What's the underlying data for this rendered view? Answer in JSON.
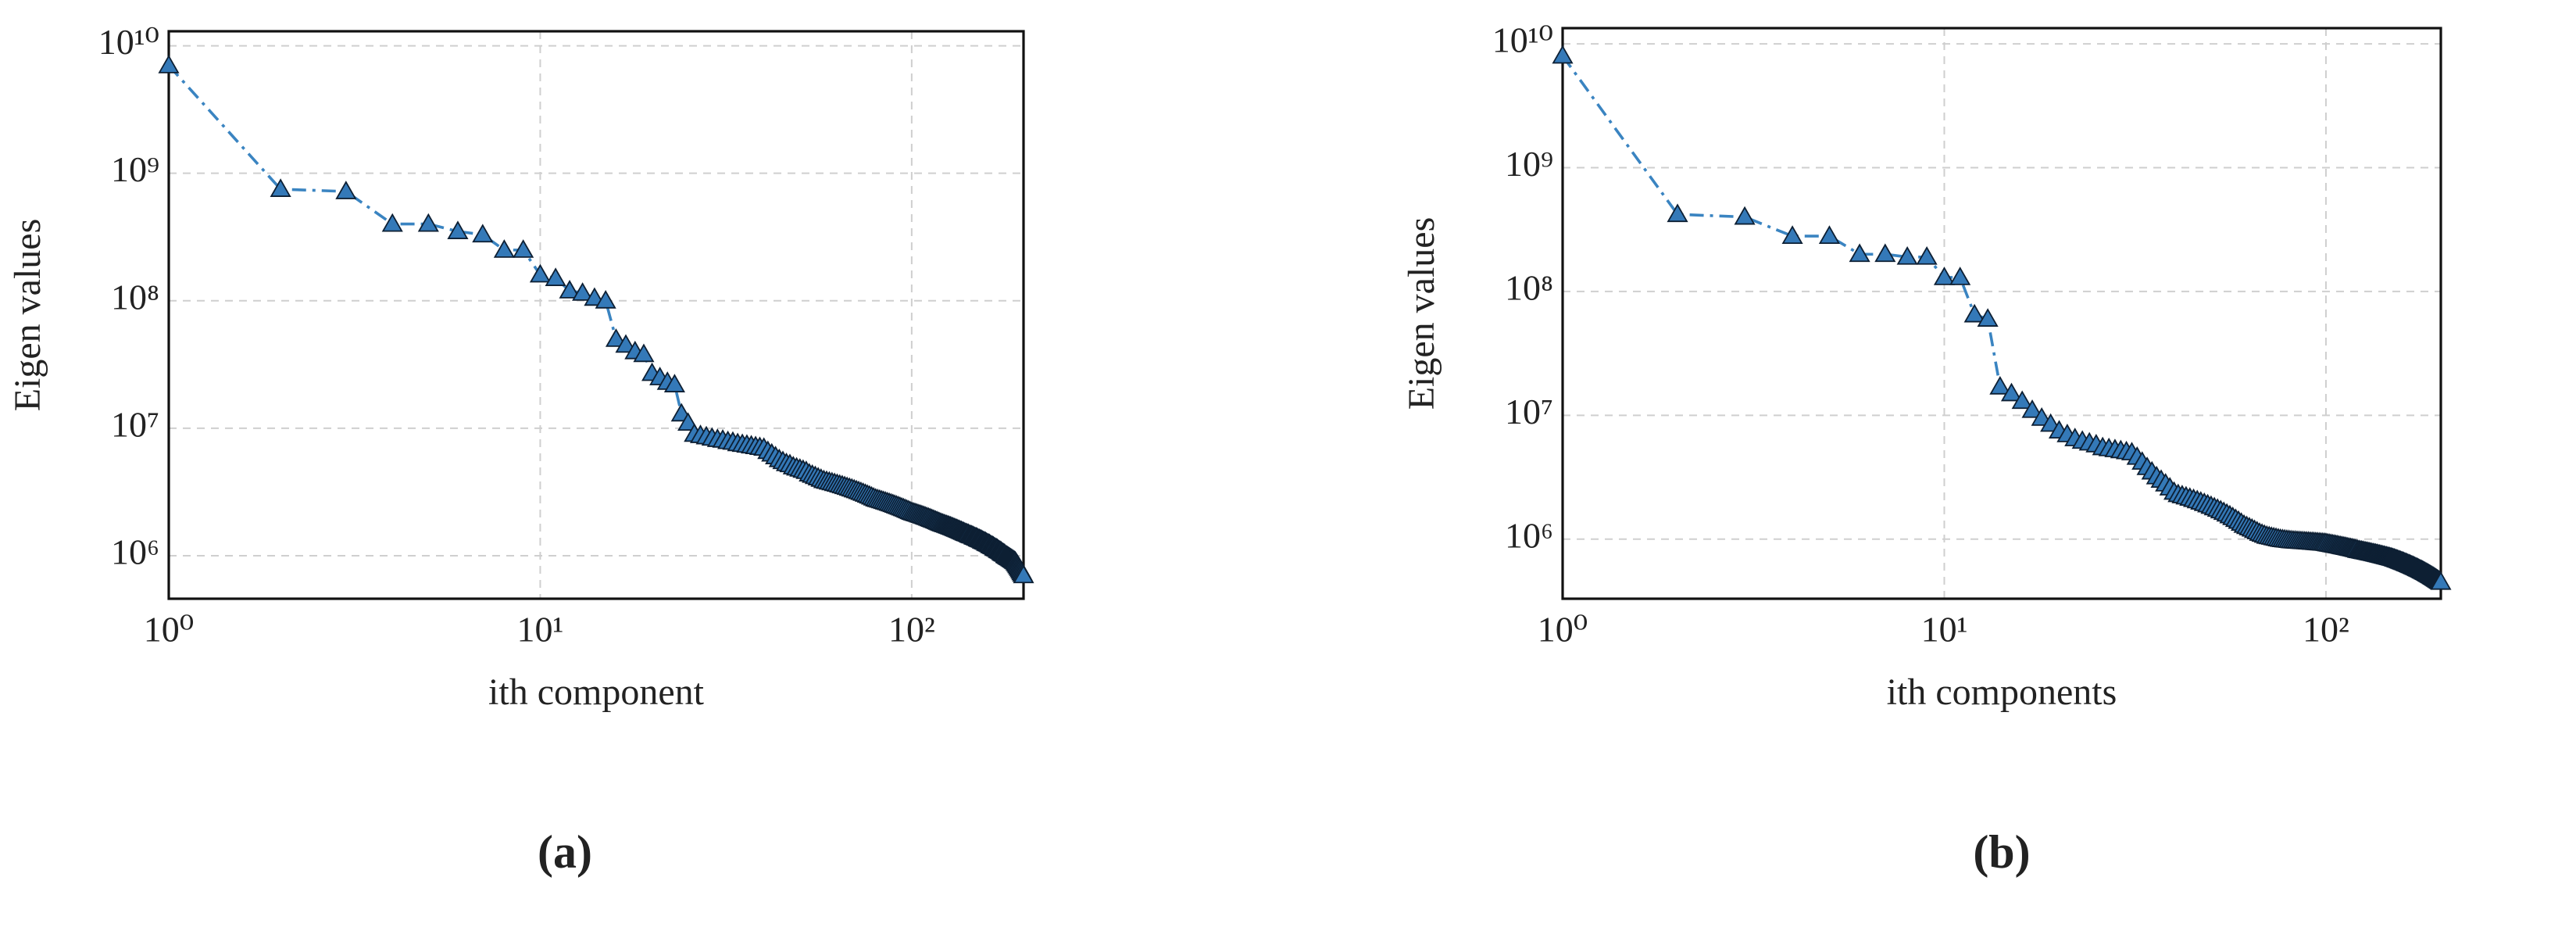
{
  "chart_data": [
    {
      "type": "line",
      "log_x": true,
      "log_y": true,
      "grid": true,
      "marker": "triangle",
      "line_style": "dashdot",
      "color": "#3a84c1",
      "marker_color": "#3479b8",
      "x_label": "ith component",
      "y_label": "Eigen values",
      "caption": "(a)",
      "xlim": [
        1,
        200
      ],
      "ylim": [
        460000,
        13000000000
      ],
      "xticks": [
        {
          "value": 1,
          "label": "10⁰"
        },
        {
          "value": 10,
          "label": "10¹"
        },
        {
          "value": 100,
          "label": "10²"
        }
      ],
      "yticks": [
        {
          "value": 1000000,
          "label": "10⁶"
        },
        {
          "value": 10000000,
          "label": "10⁷"
        },
        {
          "value": 100000000,
          "label": "10⁸"
        },
        {
          "value": 1000000000,
          "label": "10⁹"
        },
        {
          "value": 10000000000,
          "label": "10¹⁰"
        }
      ],
      "x": [
        1,
        2,
        3,
        4,
        5,
        6,
        7,
        8,
        9,
        10,
        11,
        12,
        13,
        14,
        15,
        16,
        17,
        18,
        19,
        20,
        21,
        22,
        23,
        24,
        25,
        26,
        27,
        28,
        29,
        30,
        31,
        32,
        33,
        34,
        35,
        36,
        37,
        38,
        39,
        40,
        41,
        42,
        43,
        44,
        45,
        46,
        47,
        48,
        49,
        50,
        51,
        52,
        53,
        54,
        55,
        56,
        57,
        58,
        59,
        60,
        61,
        62,
        63,
        64,
        65,
        66,
        67,
        68,
        69,
        70,
        71,
        72,
        73,
        74,
        75,
        76,
        77,
        78,
        79,
        80,
        81,
        82,
        83,
        84,
        85,
        86,
        87,
        88,
        89,
        90,
        91,
        92,
        93,
        94,
        95,
        96,
        97,
        98,
        99,
        100,
        101,
        102,
        103,
        104,
        105,
        106,
        107,
        108,
        109,
        110,
        111,
        112,
        113,
        114,
        115,
        116,
        117,
        118,
        119,
        120,
        121,
        122,
        123,
        124,
        125,
        126,
        127,
        128,
        129,
        130,
        131,
        132,
        133,
        134,
        135,
        136,
        137,
        138,
        139,
        140,
        141,
        142,
        143,
        144,
        145,
        146,
        147,
        148,
        149,
        150,
        151,
        152,
        153,
        154,
        155,
        156,
        157,
        158,
        159,
        160,
        161,
        162,
        163,
        164,
        165,
        166,
        167,
        168,
        169,
        170,
        171,
        172,
        173,
        174,
        175,
        176,
        177,
        178,
        179,
        180,
        181,
        182,
        183,
        184,
        185,
        186,
        187,
        188,
        189,
        190,
        191,
        192,
        193,
        194,
        195,
        196,
        197,
        198,
        199,
        200
      ],
      "values": [
        7000000000.0,
        750000000.0,
        720000000.0,
        400000000.0,
        400000000.0,
        350000000.0,
        330000000.0,
        250000000.0,
        250000000.0,
        160000000.0,
        150000000.0,
        120000000.0,
        115000000.0,
        105000000.0,
        100000000.0,
        50000000.0,
        45000000.0,
        40000000.0,
        38000000.0,
        27000000.0,
        25000000.0,
        23000000.0,
        22000000.0,
        13000000.0,
        11000000.0,
        9000000.0,
        8800000.0,
        8600000.0,
        8400000.0,
        8200000.0,
        8100000.0,
        7900000.0,
        7800000.0,
        7600000.0,
        7500000.0,
        7400000.0,
        7300000.0,
        7200000.0,
        7100000.0,
        7000000.0,
        6600000.0,
        6300000.0,
        6000000.0,
        5700000.0,
        5500000.0,
        5300000.0,
        5200000.0,
        5000000.0,
        4900000.0,
        4800000.0,
        4700000.0,
        4600000.0,
        4400000.0,
        4300000.0,
        4200000.0,
        4100000.0,
        4000000.0,
        3900000.0,
        3850000.0,
        3800000.0,
        3750000.0,
        3700000.0,
        3650000.0,
        3600000.0,
        3550000.0,
        3500000.0,
        3450000.0,
        3400000.0,
        3350000.0,
        3300000.0,
        3250000.0,
        3200000.0,
        3150000.0,
        3100000.0,
        3050000.0,
        3000000.0,
        2950000.0,
        2900000.0,
        2850000.0,
        2800000.0,
        2770000.0,
        2740000.0,
        2710000.0,
        2680000.0,
        2650000.0,
        2620000.0,
        2590000.0,
        2560000.0,
        2530000.0,
        2500000.0,
        2470000.0,
        2440000.0,
        2410000.0,
        2380000.0,
        2350000.0,
        2320000.0,
        2290000.0,
        2260000.0,
        2230000.0,
        2200000.0,
        2180000.0,
        2160000.0,
        2140000.0,
        2120000.0,
        2100000.0,
        2080000.0,
        2060000.0,
        2040000.0,
        2020000.0,
        2000000.0,
        1980000.0,
        1960000.0,
        1940000.0,
        1920000.0,
        1900000.0,
        1880000.0,
        1860000.0,
        1840000.0,
        1820000.0,
        1800000.0,
        1785000.0,
        1770000.0,
        1755000.0,
        1740000.0,
        1725000.0,
        1710000.0,
        1695000.0,
        1680000.0,
        1665000.0,
        1650000.0,
        1635000.0,
        1620000.0,
        1605000.0,
        1590000.0,
        1575000.0,
        1560000.0,
        1545000.0,
        1530000.0,
        1515000.0,
        1500000.0,
        1490000.0,
        1480000.0,
        1460000.0,
        1450000.0,
        1440000.0,
        1430000.0,
        1410000.0,
        1400000.0,
        1390000.0,
        1380000.0,
        1360000.0,
        1350000.0,
        1340000.0,
        1330000.0,
        1310000.0,
        1300000.0,
        1290000.0,
        1280000.0,
        1260000.0,
        1250000.0,
        1240000.0,
        1230000.0,
        1210000.0,
        1200000.0,
        1190000.0,
        1180000.0,
        1160000.0,
        1150000.0,
        1140000.0,
        1130000.0,
        1110000.0,
        1100000.0,
        1090000.0,
        1080000.0,
        1060000.0,
        1050000.0,
        1040000.0,
        1030000.0,
        1010000.0,
        1000000.0,
        990000.0,
        980000.0,
        970000.0,
        960000.0,
        950000.0,
        940000.0,
        930000.0,
        920000.0,
        910000.0,
        900000.0,
        880000.0,
        860000.0,
        840000.0,
        820000.0,
        800000.0,
        780000.0,
        760000.0,
        740000.0,
        720000.0,
        700000.0
      ]
    },
    {
      "type": "line",
      "log_x": true,
      "log_y": true,
      "grid": true,
      "marker": "triangle",
      "line_style": "dashdot",
      "color": "#3a84c1",
      "marker_color": "#3479b8",
      "x_label": "ith components",
      "y_label": "Eigen values",
      "caption": "(b)",
      "xlim": [
        1,
        200
      ],
      "ylim": [
        330000,
        13400000000
      ],
      "xticks": [
        {
          "value": 1,
          "label": "10⁰"
        },
        {
          "value": 10,
          "label": "10¹"
        },
        {
          "value": 100,
          "label": "10²"
        }
      ],
      "yticks": [
        {
          "value": 1000000,
          "label": "10⁶"
        },
        {
          "value": 10000000,
          "label": "10⁷"
        },
        {
          "value": 100000000,
          "label": "10⁸"
        },
        {
          "value": 1000000000,
          "label": "10⁹"
        },
        {
          "value": 10000000000,
          "label": "10¹⁰"
        }
      ],
      "x": [
        1,
        2,
        3,
        4,
        5,
        6,
        7,
        8,
        9,
        10,
        11,
        12,
        13,
        14,
        15,
        16,
        17,
        18,
        19,
        20,
        21,
        22,
        23,
        24,
        25,
        26,
        27,
        28,
        29,
        30,
        31,
        32,
        33,
        34,
        35,
        36,
        37,
        38,
        39,
        40,
        41,
        42,
        43,
        44,
        45,
        46,
        47,
        48,
        49,
        50,
        51,
        52,
        53,
        54,
        55,
        56,
        57,
        58,
        59,
        60,
        61,
        62,
        63,
        64,
        65,
        66,
        67,
        68,
        69,
        70,
        71,
        72,
        73,
        74,
        75,
        76,
        77,
        78,
        79,
        80,
        81,
        82,
        83,
        84,
        85,
        86,
        87,
        88,
        89,
        90,
        91,
        92,
        93,
        94,
        95,
        96,
        97,
        98,
        99,
        100,
        101,
        102,
        103,
        104,
        105,
        106,
        107,
        108,
        109,
        110,
        111,
        112,
        113,
        114,
        115,
        116,
        117,
        118,
        119,
        120,
        121,
        122,
        123,
        124,
        125,
        126,
        127,
        128,
        129,
        130,
        131,
        132,
        133,
        134,
        135,
        136,
        137,
        138,
        139,
        140,
        141,
        142,
        143,
        144,
        145,
        146,
        147,
        148,
        149,
        150,
        151,
        152,
        153,
        154,
        155,
        156,
        157,
        158,
        159,
        160,
        161,
        162,
        163,
        164,
        165,
        166,
        167,
        168,
        169,
        170,
        171,
        172,
        173,
        174,
        175,
        176,
        177,
        178,
        179,
        180,
        181,
        182,
        183,
        184,
        185,
        186,
        187,
        188,
        189,
        190,
        191,
        192,
        193,
        194,
        195,
        196,
        197,
        198,
        199,
        200
      ],
      "values": [
        8000000000.0,
        420000000.0,
        400000000.0,
        280000000.0,
        280000000.0,
        200000000.0,
        200000000.0,
        190000000.0,
        190000000.0,
        130000000.0,
        130000000.0,
        65000000.0,
        60000000.0,
        17000000.0,
        15000000.0,
        13000000.0,
        11000000.0,
        9500000.0,
        8500000.0,
        7500000.0,
        7000000.0,
        6500000.0,
        6200000.0,
        6000000.0,
        5800000.0,
        5500000.0,
        5400000.0,
        5300000.0,
        5200000.0,
        5100000.0,
        5000000.0,
        4600000.0,
        4200000.0,
        3800000.0,
        3500000.0,
        3200000.0,
        3000000.0,
        2800000.0,
        2600000.0,
        2400000.0,
        2300000.0,
        2250000.0,
        2200000.0,
        2150000.0,
        2100000.0,
        2050000.0,
        2000000.0,
        1950000.0,
        1900000.0,
        1850000.0,
        1800000.0,
        1750000.0,
        1700000.0,
        1650000.0,
        1600000.0,
        1550000.0,
        1500000.0,
        1450000.0,
        1400000.0,
        1350000.0,
        1300000.0,
        1270000.0,
        1240000.0,
        1210000.0,
        1180000.0,
        1150000.0,
        1120000.0,
        1100000.0,
        1080000.0,
        1060000.0,
        1050000.0,
        1040000.0,
        1030000.0,
        1020000.0,
        1010000.0,
        1000000.0,
        995000.0,
        990000.0,
        985000.0,
        980000.0,
        975000.0,
        972000.0,
        970000.0,
        967000.0,
        965000.0,
        962000.0,
        960000.0,
        957000.0,
        955000.0,
        952000.0,
        950000.0,
        947000.0,
        945000.0,
        942000.0,
        940000.0,
        937000.0,
        935000.0,
        932000.0,
        930000.0,
        927000.0,
        920000.0,
        915000.0,
        910000.0,
        905000.0,
        900000.0,
        895000.0,
        890000.0,
        885000.0,
        880000.0,
        875000.0,
        870000.0,
        865000.0,
        860000.0,
        855000.0,
        850000.0,
        845000.0,
        840000.0,
        835000.0,
        830000.0,
        825000.0,
        816000.0,
        812000.0,
        808000.0,
        804000.0,
        800000.0,
        796000.0,
        792000.0,
        788000.0,
        784000.0,
        780000.0,
        776000.0,
        772000.0,
        768000.0,
        764000.0,
        760000.0,
        756000.0,
        752000.0,
        748000.0,
        744000.0,
        740000.0,
        736000.0,
        732000.0,
        728000.0,
        724000.0,
        720000.0,
        716000.0,
        712000.0,
        708000.0,
        704000.0,
        700000.0,
        695000.0,
        690000.0,
        685000.0,
        680000.0,
        675000.0,
        670000.0,
        665000.0,
        660000.0,
        655000.0,
        650000.0,
        645000.0,
        640000.0,
        635000.0,
        630000.0,
        625000.0,
        620000.0,
        615000.0,
        610000.0,
        605000.0,
        600000.0,
        595000.0,
        590000.0,
        585000.0,
        580000.0,
        575000.0,
        570000.0,
        565000.0,
        560000.0,
        555000.0,
        550000.0,
        545000.0,
        540000.0,
        535000.0,
        530000.0,
        525000.0,
        520000.0,
        515000.0,
        510000.0,
        505000.0,
        500000.0,
        495000.0,
        490000.0,
        485000.0,
        480000.0,
        475000.0,
        470000.0,
        465000.0,
        460000.0,
        455000.0,
        450000.0
      ]
    }
  ]
}
